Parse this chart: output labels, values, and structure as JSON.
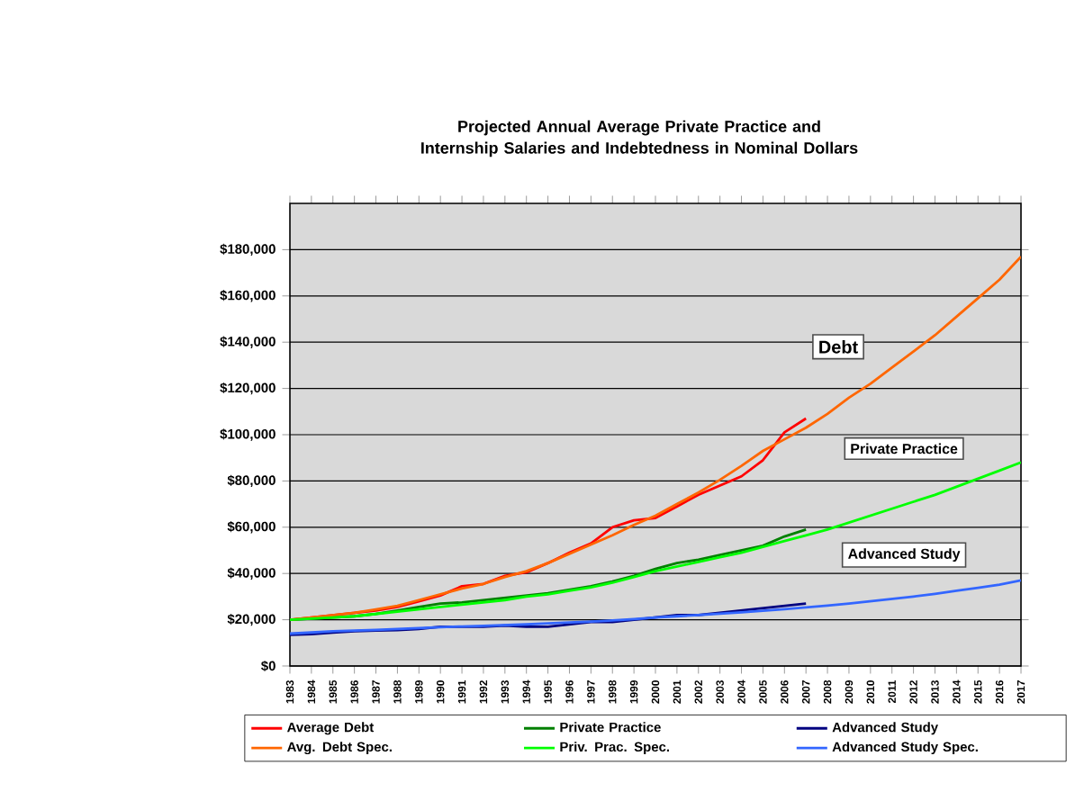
{
  "chart_data": {
    "type": "line",
    "title": "Projected Annual Average Private Practice and Internship Salaries and Indebtedness in Nominal Dollars",
    "categories": [
      "1983",
      "1984",
      "1985",
      "1986",
      "1987",
      "1988",
      "1989",
      "1990",
      "1991",
      "1992",
      "1993",
      "1994",
      "1995",
      "1996",
      "1997",
      "1998",
      "1999",
      "2000",
      "2001",
      "2002",
      "2003",
      "2004",
      "2005",
      "2006",
      "2007",
      "2008",
      "2009",
      "2010",
      "2011",
      "2012",
      "2013",
      "2014",
      "2015",
      "2016",
      "2017"
    ],
    "series": [
      {
        "name": "Average Debt",
        "color": "#ff0000",
        "values": [
          20000,
          21000,
          22000,
          23000,
          24000,
          25500,
          28000,
          30500,
          34500,
          35500,
          39000,
          40500,
          44500,
          49000,
          53000,
          60000,
          63000,
          64000,
          69000,
          74000,
          78000,
          82000,
          89000,
          101000,
          107000,
          null,
          null,
          null,
          null,
          null,
          null,
          null,
          null,
          null,
          null
        ]
      },
      {
        "name": "Private Practice",
        "color": "#008000",
        "values": [
          20000,
          20500,
          21000,
          21500,
          22500,
          24000,
          25500,
          27000,
          27500,
          28500,
          29500,
          30500,
          31500,
          33000,
          34500,
          36500,
          39000,
          42000,
          44500,
          46000,
          48000,
          50000,
          52000,
          56000,
          59000,
          null,
          null,
          null,
          null,
          null,
          null,
          null,
          null,
          null,
          null
        ]
      },
      {
        "name": "Advanced Study",
        "color": "#000080",
        "values": [
          13500,
          13800,
          14500,
          15000,
          15300,
          15500,
          16000,
          17000,
          17000,
          17000,
          17500,
          17000,
          17000,
          18000,
          19000,
          19000,
          20000,
          21000,
          22000,
          22000,
          23000,
          24000,
          25000,
          26000,
          27000,
          null,
          null,
          null,
          null,
          null,
          null,
          null,
          null,
          null,
          null
        ]
      },
      {
        "name": "Avg. Debt Spec.",
        "color": "#ff6600",
        "values": [
          20000,
          21000,
          22000,
          23000,
          24500,
          26000,
          28500,
          31000,
          33500,
          35500,
          38500,
          41000,
          44500,
          48500,
          52500,
          56500,
          61000,
          65000,
          70000,
          75000,
          80500,
          86500,
          93000,
          98000,
          103000,
          109000,
          116000,
          122000,
          129000,
          136000,
          143000,
          151000,
          159000,
          167000,
          177000
        ]
      },
      {
        "name": "Priv. Prac. Spec.",
        "color": "#00ff00",
        "values": [
          20000,
          20500,
          21000,
          21500,
          22500,
          23500,
          24500,
          25500,
          26500,
          27500,
          28500,
          30000,
          31000,
          32500,
          34000,
          36000,
          38500,
          41000,
          43000,
          45000,
          47000,
          49000,
          51500,
          54000,
          56500,
          59000,
          62000,
          65000,
          68000,
          71000,
          74000,
          77500,
          81000,
          84500,
          88000
        ]
      },
      {
        "name": "Advanced Study Spec.",
        "color": "#3366ff",
        "values": [
          14000,
          14500,
          15000,
          15300,
          15600,
          16000,
          16400,
          16800,
          17100,
          17400,
          17700,
          18000,
          18400,
          18800,
          19200,
          19700,
          20300,
          21000,
          21500,
          22000,
          22600,
          23200,
          23900,
          24600,
          25300,
          26100,
          27000,
          28000,
          29000,
          30000,
          31200,
          32500,
          33800,
          35200,
          37000
        ]
      }
    ],
    "ylim": [
      0,
      200000
    ],
    "yticks": [
      {
        "value": 0,
        "label": "$0"
      },
      {
        "value": 20000,
        "label": "$20,000"
      },
      {
        "value": 40000,
        "label": "$40,000"
      },
      {
        "value": 60000,
        "label": "$60,000"
      },
      {
        "value": 80000,
        "label": "$80,000"
      },
      {
        "value": 100000,
        "label": "$100,000"
      },
      {
        "value": 120000,
        "label": "$120,000"
      },
      {
        "value": 140000,
        "label": "$140,000"
      },
      {
        "value": 160000,
        "label": "$160,000"
      },
      {
        "value": 180000,
        "label": "$180,000"
      }
    ],
    "grid": "y",
    "legend": "bottom",
    "annotations": [
      "Debt",
      "Private Practice",
      "Advanced Study"
    ]
  }
}
